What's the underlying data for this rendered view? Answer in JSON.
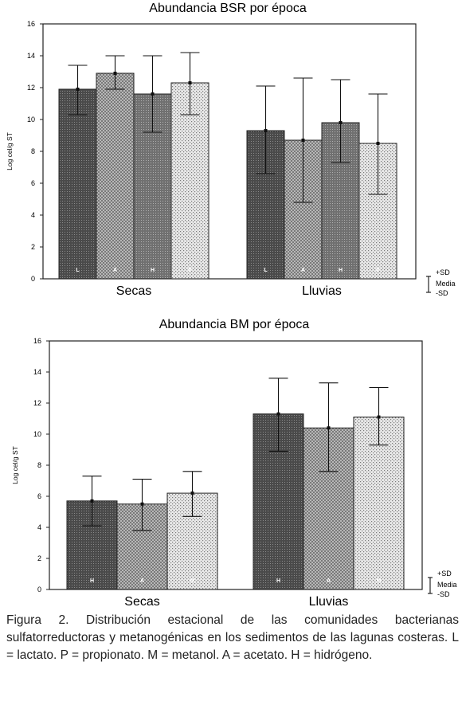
{
  "chart_data": [
    {
      "type": "bar",
      "title": "Abundancia BSR por época",
      "ylabel": "Log cel/g ST",
      "ylim": [
        0,
        16
      ],
      "yticks": [
        0,
        2,
        4,
        6,
        8,
        10,
        12,
        14,
        16
      ],
      "groups": [
        "Secas",
        "Lluvias"
      ],
      "series": [
        {
          "letter": "L",
          "values": [
            11.9,
            9.3
          ],
          "sd_low": [
            10.3,
            6.6
          ],
          "sd_high": [
            13.4,
            12.1
          ]
        },
        {
          "letter": "A",
          "values": [
            12.9,
            8.7
          ],
          "sd_low": [
            11.9,
            4.8
          ],
          "sd_high": [
            14.0,
            12.6
          ]
        },
        {
          "letter": "H",
          "values": [
            11.6,
            9.8
          ],
          "sd_low": [
            9.2,
            7.3
          ],
          "sd_high": [
            14.0,
            12.5
          ]
        },
        {
          "letter": "P",
          "values": [
            12.3,
            8.5
          ],
          "sd_low": [
            10.3,
            5.3
          ],
          "sd_high": [
            14.2,
            11.6
          ]
        }
      ],
      "legend": {
        "plus": "+SD",
        "mean": "Media",
        "minus": "-SD"
      }
    },
    {
      "type": "bar",
      "title": "Abundancia BM por época",
      "ylabel": "Log cel/g ST",
      "ylim": [
        0,
        16
      ],
      "yticks": [
        0,
        2,
        4,
        6,
        8,
        10,
        12,
        14,
        16
      ],
      "groups": [
        "Secas",
        "Lluvias"
      ],
      "series": [
        {
          "letter": "H",
          "values": [
            5.7,
            11.3
          ],
          "sd_low": [
            4.1,
            8.9
          ],
          "sd_high": [
            7.3,
            13.6
          ]
        },
        {
          "letter": "A",
          "values": [
            5.5,
            10.4
          ],
          "sd_low": [
            3.8,
            7.6
          ],
          "sd_high": [
            7.1,
            13.3
          ]
        },
        {
          "letter": "M",
          "values": [
            6.2,
            11.1
          ],
          "sd_low": [
            4.7,
            9.3
          ],
          "sd_high": [
            7.6,
            13.0
          ]
        }
      ],
      "legend": {
        "plus": "+SD",
        "mean": "Media",
        "minus": "-SD"
      }
    }
  ],
  "caption": "Figura 2. Distribución estacional de las comunidades bacterianas sulfatorreductoras y metanogénicas en los sedimentos de las lagunas costeras. L = lactato. P = propionato. M = metanol. A = acetato. H = hidrógeno."
}
